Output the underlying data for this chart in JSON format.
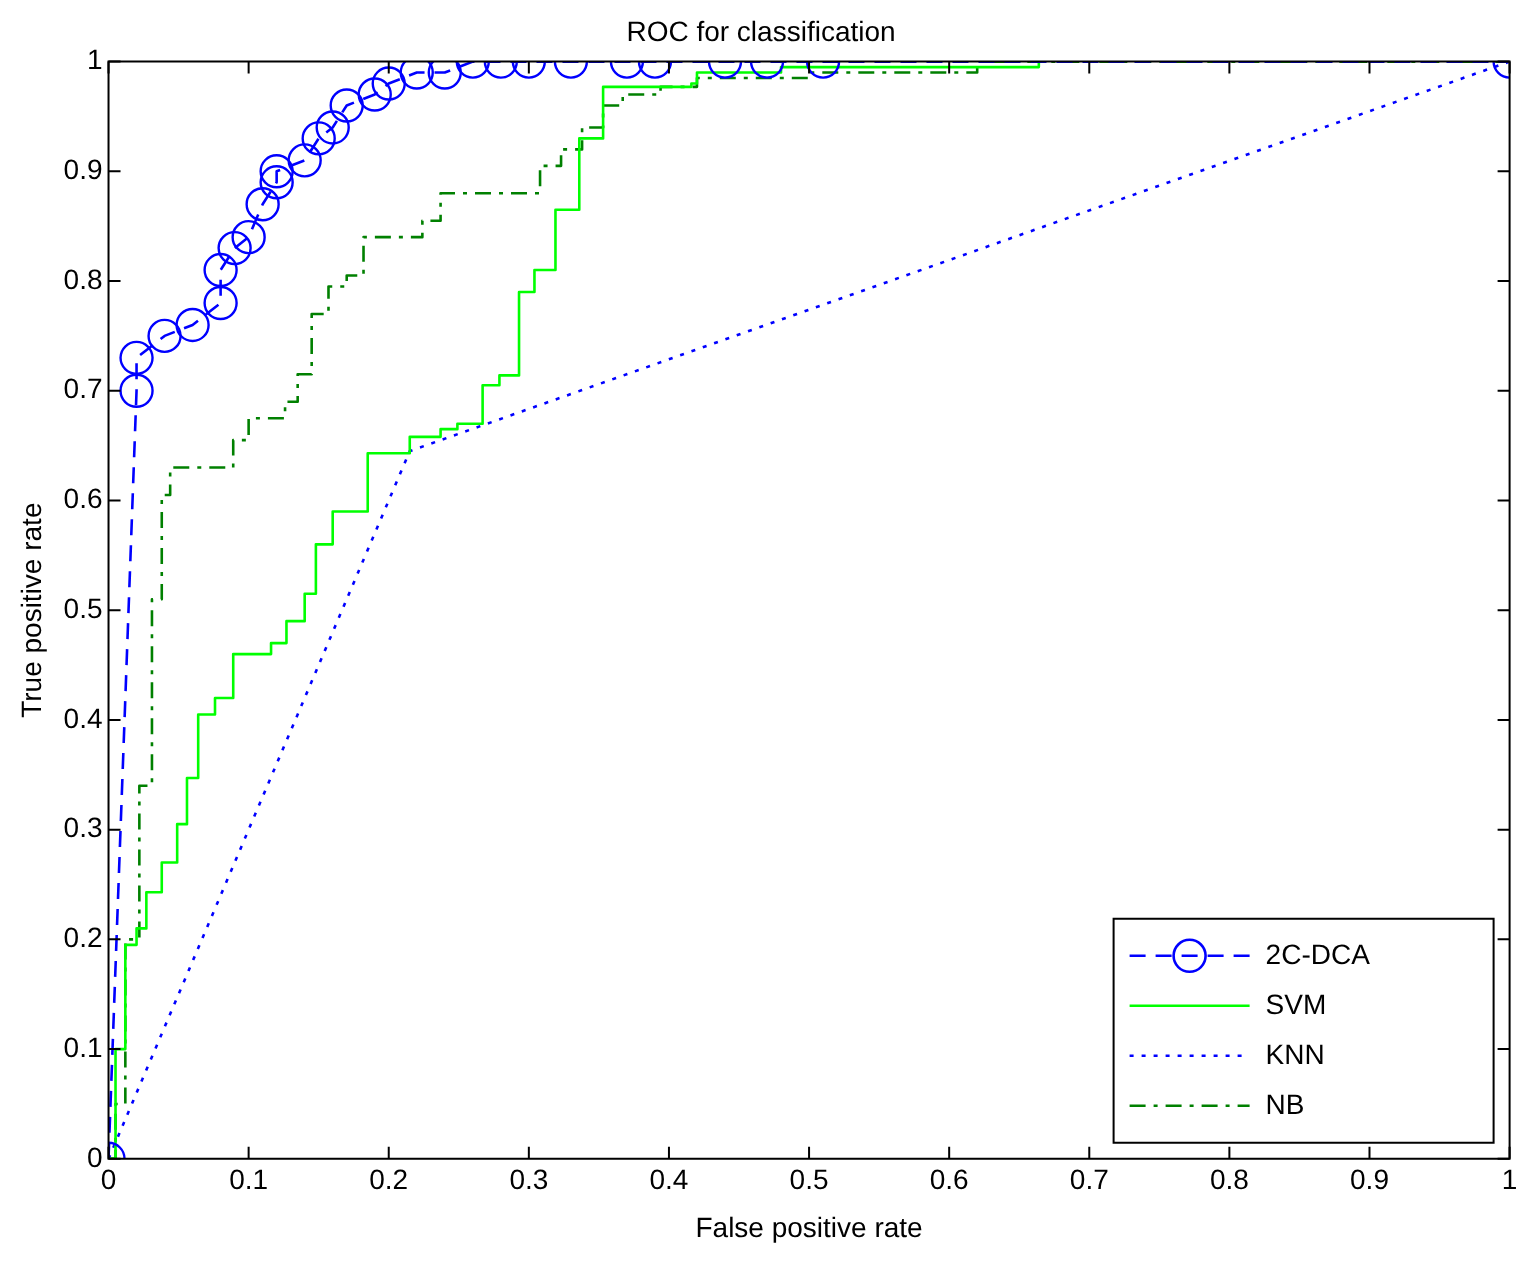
{
  "chart_data": {
    "type": "line",
    "title": "ROC for classification",
    "xlabel": "False positive rate",
    "ylabel": "True positive rate",
    "xlim": [
      0,
      1
    ],
    "ylim": [
      0,
      1
    ],
    "xticks": [
      0,
      0.1,
      0.2,
      0.3,
      0.4,
      0.5,
      0.6,
      0.7,
      0.8,
      0.9,
      1
    ],
    "yticks": [
      0,
      0.1,
      0.2,
      0.3,
      0.4,
      0.5,
      0.6,
      0.7,
      0.8,
      0.9,
      1
    ],
    "grid": false,
    "legend": "bottom right",
    "series": [
      {
        "name": "2C-DCA",
        "color": "#0000ff",
        "line_style": "dashed",
        "marker": "circle",
        "x": [
          0,
          0.02,
          0.02,
          0.04,
          0.06,
          0.08,
          0.08,
          0.09,
          0.1,
          0.11,
          0.12,
          0.12,
          0.14,
          0.15,
          0.16,
          0.17,
          0.19,
          0.2,
          0.22,
          0.24,
          0.26,
          0.28,
          0.3,
          0.33,
          0.37,
          0.39,
          0.44,
          0.47,
          0.51,
          1
        ],
        "values": [
          0,
          0.7,
          0.73,
          0.75,
          0.76,
          0.78,
          0.81,
          0.83,
          0.84,
          0.87,
          0.89,
          0.9,
          0.91,
          0.93,
          0.94,
          0.96,
          0.97,
          0.98,
          0.99,
          0.99,
          1,
          1,
          1,
          1,
          1,
          1,
          1,
          1,
          1,
          1
        ]
      },
      {
        "name": "SVM",
        "type": "step",
        "color": "#00ff00",
        "line_style": "solid",
        "marker": "none",
        "x": [
          0,
          0.005,
          0.012,
          0.02,
          0.027,
          0.038,
          0.049,
          0.056,
          0.064,
          0.076,
          0.089,
          0.116,
          0.127,
          0.14,
          0.148,
          0.16,
          0.185,
          0.215,
          0.237,
          0.249,
          0.267,
          0.279,
          0.293,
          0.304,
          0.319,
          0.336,
          0.353,
          0.416,
          0.42,
          0.48,
          0.664
        ],
        "values": [
          0,
          0.1,
          0.195,
          0.21,
          0.243,
          0.27,
          0.305,
          0.347,
          0.405,
          0.42,
          0.46,
          0.47,
          0.49,
          0.515,
          0.56,
          0.59,
          0.643,
          0.658,
          0.665,
          0.67,
          0.705,
          0.714,
          0.79,
          0.81,
          0.865,
          0.93,
          0.977,
          0.98,
          0.99,
          0.995,
          1
        ]
      },
      {
        "name": "KNN",
        "color": "#0000ff",
        "line_style": "dotted",
        "marker": "none",
        "x": [
          0,
          0.215,
          1
        ],
        "values": [
          0,
          0.645,
          1
        ]
      },
      {
        "name": "NB",
        "type": "step",
        "color": "#008000",
        "line_style": "dashdot",
        "marker": "none",
        "x": [
          0,
          0.005,
          0.012,
          0.022,
          0.031,
          0.038,
          0.044,
          0.089,
          0.1,
          0.126,
          0.135,
          0.145,
          0.157,
          0.17,
          0.182,
          0.209,
          0.224,
          0.237,
          0.293,
          0.308,
          0.323,
          0.338,
          0.353,
          0.367,
          0.394,
          0.42,
          0.5,
          0.62,
          1
        ],
        "values": [
          0,
          0.05,
          0.2,
          0.34,
          0.51,
          0.605,
          0.63,
          0.655,
          0.675,
          0.69,
          0.715,
          0.77,
          0.795,
          0.805,
          0.84,
          0.84,
          0.855,
          0.88,
          0.88,
          0.905,
          0.92,
          0.94,
          0.96,
          0.97,
          0.977,
          0.985,
          0.99,
          1,
          1
        ]
      }
    ]
  }
}
